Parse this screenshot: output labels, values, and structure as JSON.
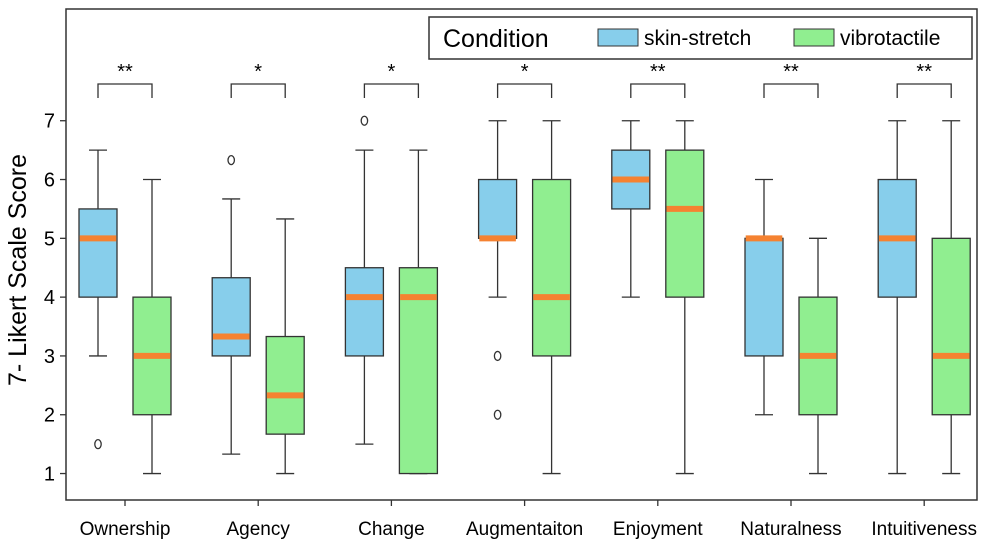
{
  "chart_data": {
    "type": "boxplot",
    "title": "",
    "xlabel": "",
    "ylabel": "7- Likert Scale Score",
    "ylim": [
      0.55,
      8.9
    ],
    "yticks": [
      1,
      2,
      3,
      4,
      5,
      6,
      7
    ],
    "categories": [
      "Ownership",
      "Agency",
      "Change",
      "Augmentaiton",
      "Enjoyment",
      "Naturalness",
      "Intuitiveness"
    ],
    "significance": [
      "**",
      "*",
      "*",
      "*",
      "**",
      "**",
      "**"
    ],
    "legend": {
      "title": "Condition",
      "position": "top-right",
      "entries": [
        "skin-stretch",
        "vibrotactile"
      ]
    },
    "colors": {
      "skin-stretch": "#87ceeb",
      "vibrotactile": "#90ee90",
      "median": "#f58231",
      "line": "#333333"
    },
    "series": [
      {
        "name": "skin-stretch",
        "boxes": [
          {
            "whislo": 3.0,
            "q1": 4.0,
            "med": 5.0,
            "q3": 5.5,
            "whishi": 6.5,
            "fliers": [
              1.5
            ]
          },
          {
            "whislo": 1.33,
            "q1": 3.0,
            "med": 3.33,
            "q3": 4.33,
            "whishi": 5.67,
            "fliers": [
              6.33
            ]
          },
          {
            "whislo": 1.5,
            "q1": 3.0,
            "med": 4.0,
            "q3": 4.5,
            "whishi": 6.5,
            "fliers": [
              7.0
            ]
          },
          {
            "whislo": 4.0,
            "q1": 5.0,
            "med": 5.0,
            "q3": 6.0,
            "whishi": 7.0,
            "fliers": [
              3.0,
              2.0
            ]
          },
          {
            "whislo": 4.0,
            "q1": 5.5,
            "med": 6.0,
            "q3": 6.5,
            "whishi": 7.0,
            "fliers": []
          },
          {
            "whislo": 2.0,
            "q1": 3.0,
            "med": 5.0,
            "q3": 5.0,
            "whishi": 6.0,
            "fliers": []
          },
          {
            "whislo": 1.0,
            "q1": 4.0,
            "med": 5.0,
            "q3": 6.0,
            "whishi": 7.0,
            "fliers": []
          }
        ]
      },
      {
        "name": "vibrotactile",
        "boxes": [
          {
            "whislo": 1.0,
            "q1": 2.0,
            "med": 3.0,
            "q3": 4.0,
            "whishi": 6.0,
            "fliers": []
          },
          {
            "whislo": 1.0,
            "q1": 1.67,
            "med": 2.33,
            "q3": 3.33,
            "whishi": 5.33,
            "fliers": []
          },
          {
            "whislo": 1.0,
            "q1": 1.0,
            "med": 4.0,
            "q3": 4.5,
            "whishi": 6.5,
            "fliers": []
          },
          {
            "whislo": 1.0,
            "q1": 3.0,
            "med": 4.0,
            "q3": 6.0,
            "whishi": 7.0,
            "fliers": []
          },
          {
            "whislo": 1.0,
            "q1": 4.0,
            "med": 5.5,
            "q3": 6.5,
            "whishi": 7.0,
            "fliers": []
          },
          {
            "whislo": 1.0,
            "q1": 2.0,
            "med": 3.0,
            "q3": 4.0,
            "whishi": 5.0,
            "fliers": []
          },
          {
            "whislo": 1.0,
            "q1": 2.0,
            "med": 3.0,
            "q3": 5.0,
            "whishi": 7.0,
            "fliers": []
          }
        ]
      }
    ]
  }
}
